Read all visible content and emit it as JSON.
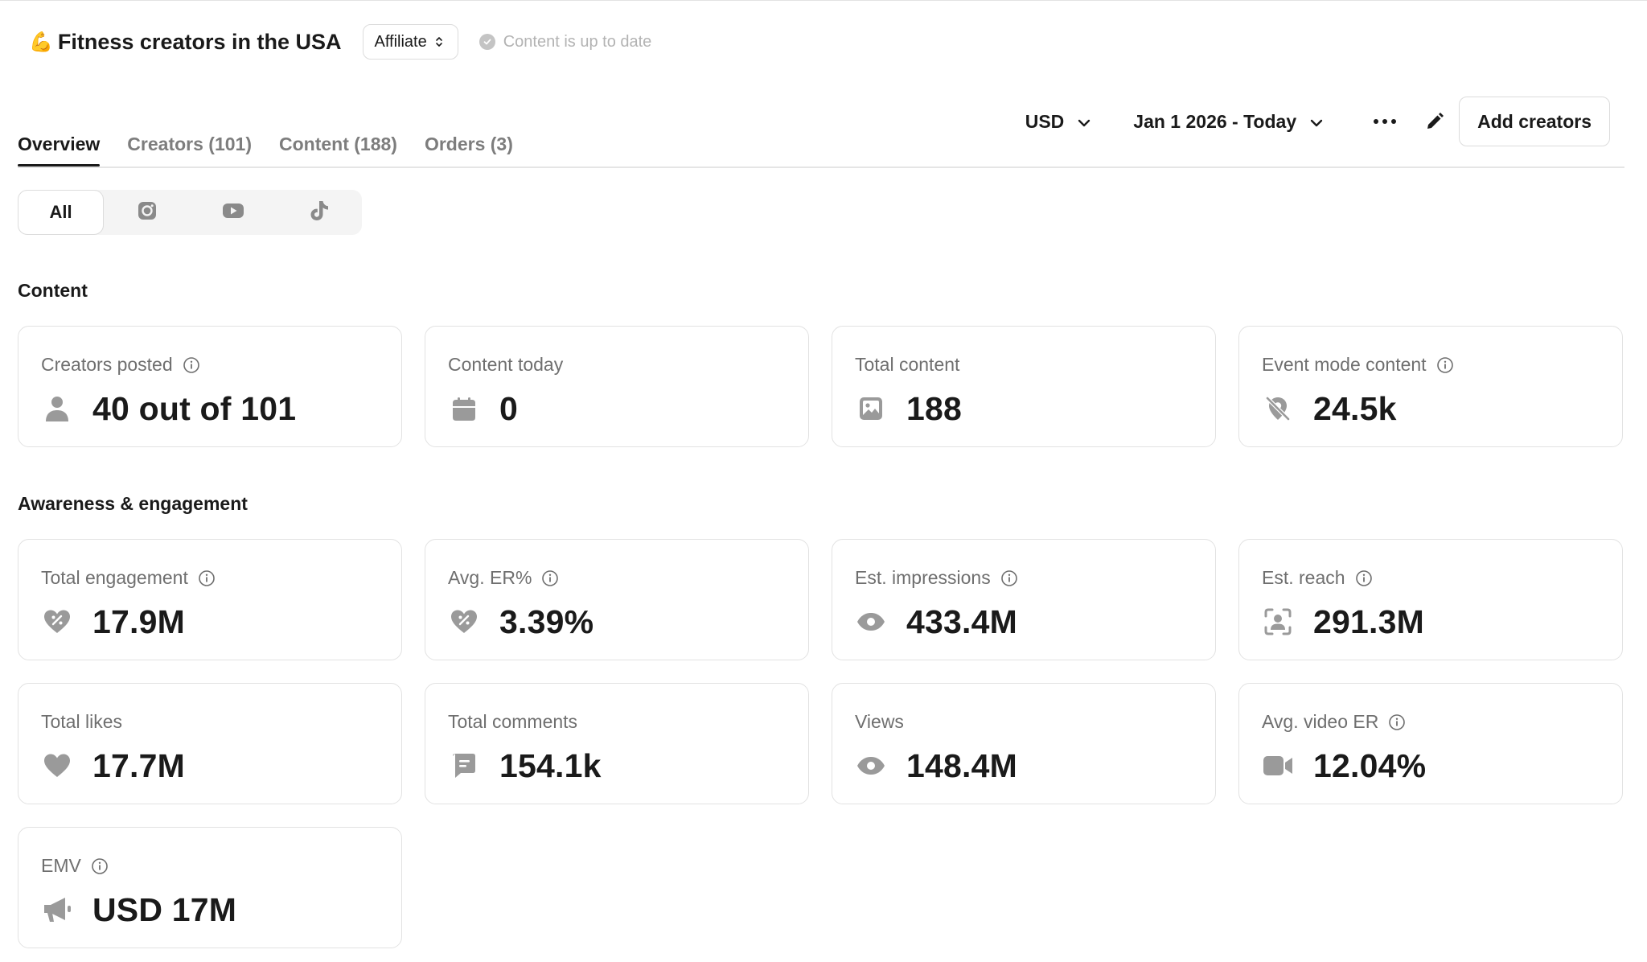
{
  "header": {
    "emoji": "💪",
    "title": "Fitness creators in the USA",
    "type_select": "Affiliate",
    "status": "Content is up to date"
  },
  "toolbar": {
    "currency": "USD",
    "date_range": "Jan 1 2026 - Today",
    "add_button": "Add creators"
  },
  "tabs": [
    {
      "label": "Overview",
      "active": true
    },
    {
      "label": "Creators (101)",
      "active": false
    },
    {
      "label": "Content (188)",
      "active": false
    },
    {
      "label": "Orders (3)",
      "active": false
    }
  ],
  "filter": {
    "all_label": "All",
    "platforms": [
      "instagram-icon",
      "youtube-icon",
      "tiktok-icon"
    ]
  },
  "sections": {
    "content": "Content",
    "awareness": "Awareness & engagement"
  },
  "cards": {
    "creators_posted": {
      "label": "Creators posted",
      "value": "40 out of 101",
      "icon": "person-icon"
    },
    "content_today": {
      "label": "Content today",
      "value": "0",
      "icon": "calendar-icon"
    },
    "total_content": {
      "label": "Total content",
      "value": "188",
      "icon": "image-icon"
    },
    "event_mode": {
      "label": "Event mode content",
      "value": "24.5k",
      "icon": "location-off-icon"
    },
    "total_engagement": {
      "label": "Total engagement",
      "value": "17.9M",
      "icon": "heart-percent-icon"
    },
    "avg_er": {
      "label": "Avg. ER%",
      "value": "3.39%",
      "icon": "heart-percent-icon"
    },
    "est_impressions": {
      "label": "Est. impressions",
      "value": "433.4M",
      "icon": "eye-icon"
    },
    "est_reach": {
      "label": "Est. reach",
      "value": "291.3M",
      "icon": "reach-icon"
    },
    "total_likes": {
      "label": "Total likes",
      "value": "17.7M",
      "icon": "heart-icon"
    },
    "total_comments": {
      "label": "Total comments",
      "value": "154.1k",
      "icon": "comment-icon"
    },
    "views": {
      "label": "Views",
      "value": "148.4M",
      "icon": "eye-icon"
    },
    "avg_video_er": {
      "label": "Avg. video ER",
      "value": "12.04%",
      "icon": "video-icon"
    },
    "emv": {
      "label": "EMV",
      "value": "USD 17M",
      "icon": "megaphone-icon"
    }
  },
  "colors": {
    "text": "#1a1a1a",
    "muted": "#6f6f6f",
    "icon": "#9a9a9a",
    "border": "#e2e2e2"
  }
}
